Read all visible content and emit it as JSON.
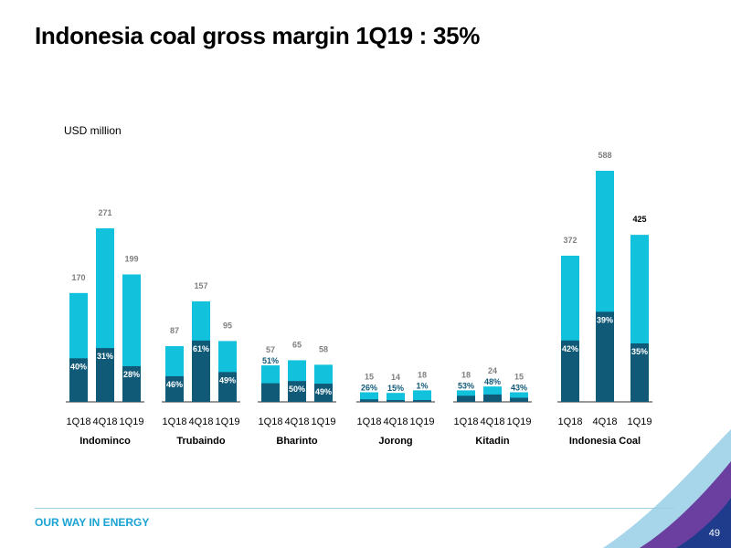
{
  "title": "Indonesia coal gross margin 1Q19 : 35%",
  "unit_label": "USD million",
  "footer": {
    "tagline": "OUR WAY IN ENERGY",
    "page_number": "49"
  },
  "colors": {
    "revenue": "#12c1dc",
    "margin": "#105a78",
    "axis": "#333333",
    "bold_label": "#000000"
  },
  "chart_data": {
    "type": "bar",
    "subtype": "overlapping-bar",
    "measures": [
      "total value (USD million, printed above bar)",
      "gross margin % (printed inside dark bar)"
    ],
    "groups": [
      {
        "name": "Indominco",
        "bars": [
          {
            "period": "1Q18",
            "value": 170,
            "margin_pct": "40%"
          },
          {
            "period": "4Q18",
            "value": 271,
            "margin_pct": "31%"
          },
          {
            "period": "1Q19",
            "value": 199,
            "margin_pct": "28%"
          }
        ]
      },
      {
        "name": "Trubaindo",
        "bars": [
          {
            "period": "1Q18",
            "value": 87,
            "margin_pct": "46%"
          },
          {
            "period": "4Q18",
            "value": 157,
            "margin_pct": "61%"
          },
          {
            "period": "1Q19",
            "value": 95,
            "margin_pct": "49%"
          }
        ]
      },
      {
        "name": "Bharinto",
        "bars": [
          {
            "period": "1Q18",
            "value": 57,
            "margin_pct": "51%"
          },
          {
            "period": "4Q18",
            "value": 65,
            "margin_pct": "50%"
          },
          {
            "period": "1Q19",
            "value": 58,
            "margin_pct": "49%"
          }
        ]
      },
      {
        "name": "Jorong",
        "bars": [
          {
            "period": "1Q18",
            "value": 15,
            "margin_pct": "26%"
          },
          {
            "period": "4Q18",
            "value": 14,
            "margin_pct": "15%"
          },
          {
            "period": "1Q19",
            "value": 18,
            "margin_pct": "1%"
          }
        ]
      },
      {
        "name": "Kitadin",
        "bars": [
          {
            "period": "1Q18",
            "value": 18,
            "margin_pct": "53%"
          },
          {
            "period": "4Q18",
            "value": 24,
            "margin_pct": "48%"
          },
          {
            "period": "1Q19",
            "value": 15,
            "margin_pct": "43%"
          }
        ]
      },
      {
        "name": "Indonesia Coal",
        "bars": [
          {
            "period": "1Q18",
            "value": 372,
            "margin_pct": "42%"
          },
          {
            "period": "4Q18",
            "value": 588,
            "margin_pct": "39%"
          },
          {
            "period": "1Q19",
            "value": 425,
            "margin_pct": "35%"
          }
        ]
      }
    ],
    "grid": false,
    "legend": "none"
  }
}
